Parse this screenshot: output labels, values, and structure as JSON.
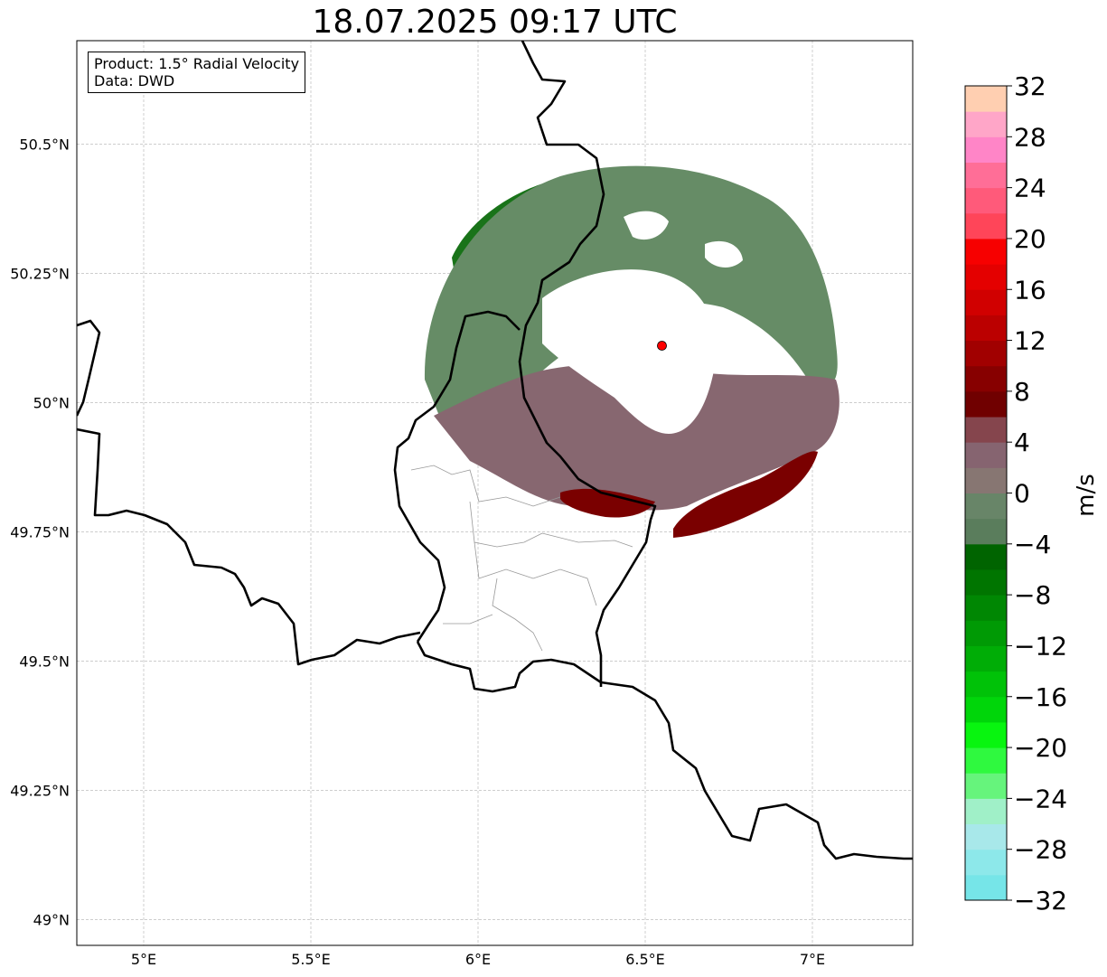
{
  "title": "18.07.2025 09:17 UTC",
  "info_box": {
    "product": "Product: 1.5° Radial Velocity",
    "source": "Data: DWD"
  },
  "map": {
    "lon_range": [
      4.8,
      7.3
    ],
    "lat_range": [
      48.95,
      50.7
    ],
    "lon_ticks": [
      {
        "value": 5.0,
        "label": "5°E"
      },
      {
        "value": 5.5,
        "label": "5.5°E"
      },
      {
        "value": 6.0,
        "label": "6°E"
      },
      {
        "value": 6.5,
        "label": "6.5°E"
      },
      {
        "value": 7.0,
        "label": "7°E"
      }
    ],
    "lat_ticks": [
      {
        "value": 50.5,
        "label": "50.5°N"
      },
      {
        "value": 50.25,
        "label": "50.25°N"
      },
      {
        "value": 50.0,
        "label": "50°N"
      },
      {
        "value": 49.75,
        "label": "49.75°N"
      },
      {
        "value": 49.5,
        "label": "49.5°N"
      },
      {
        "value": 49.25,
        "label": "49.25°N"
      },
      {
        "value": 49.0,
        "label": "49°N"
      }
    ],
    "gridlines": true,
    "radar_site": {
      "lon": 6.55,
      "lat": 50.11,
      "color": "#ff0000"
    }
  },
  "colorbar": {
    "label": "m/s",
    "min": -32,
    "max": 32,
    "tick_values": [
      -32,
      -28,
      -24,
      -20,
      -16,
      -12,
      -8,
      -4,
      0,
      4,
      8,
      12,
      16,
      20,
      24,
      28,
      32
    ],
    "tick_labels": [
      "−32",
      "−28",
      "−24",
      "−20",
      "−16",
      "−12",
      "−8",
      "−4",
      "0",
      "4",
      "8",
      "12",
      "16",
      "20",
      "24",
      "28",
      "32"
    ],
    "colors": [
      "#76e5e8",
      "#8de8ea",
      "#a8e8ea",
      "#a0f0c8",
      "#66f47c",
      "#2ff93f",
      "#08f50f",
      "#00d60a",
      "#00c208",
      "#00ad06",
      "#009a05",
      "#008703",
      "#007500",
      "#006400",
      "#5a7d5c",
      "#688568",
      "#877672",
      "#866470",
      "#85454d",
      "#700000",
      "#870000",
      "#a10000",
      "#bb0000",
      "#d10000",
      "#e40000",
      "#f70000",
      "#ff4559",
      "#ff5a7a",
      "#ff6e97",
      "#ff85c7",
      "#ffa6c8",
      "#ffcfb1"
    ]
  }
}
